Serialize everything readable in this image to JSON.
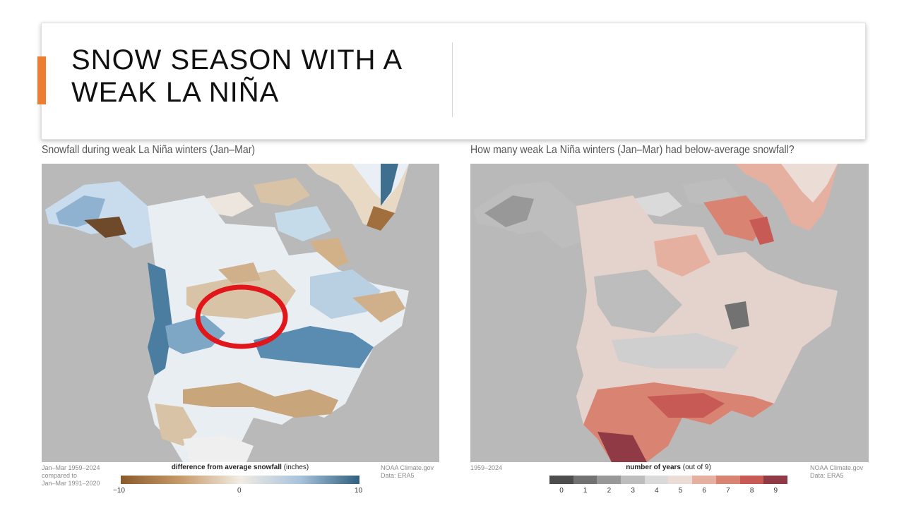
{
  "slide": {
    "title": "SNOW SEASON WITH A WEAK LA NIÑA",
    "accent_color": "#ED7D31"
  },
  "left_map": {
    "caption": "Snowfall during weak La Niña winters (Jan–Mar)",
    "period_note": [
      "Jan–Mar 1959–2024",
      "compared to",
      "Jan–Mar 1991–2020"
    ],
    "source": [
      "NOAA Climate.gov",
      "Data: ERA5"
    ],
    "legend_title": "difference from average snowfall",
    "legend_unit": "(inches)",
    "legend_ticks": [
      "−10",
      "0",
      "10"
    ],
    "legend_colors": [
      "#8a5a2b",
      "#f1ece4",
      "#2f5f7f"
    ],
    "highlight_color": "#e0161b"
  },
  "right_map": {
    "caption": "How many weak La Niña winters (Jan–Mar) had below-average snowfall?",
    "period_note": [
      "1959–2024"
    ],
    "source": [
      "NOAA Climate.gov",
      "Data: ERA5"
    ],
    "legend_title": "number of years",
    "legend_unit": "(out of 9)",
    "legend_ticks": [
      "0",
      "1",
      "2",
      "3",
      "4",
      "5",
      "6",
      "7",
      "8",
      "9"
    ],
    "legend_colors": [
      "#4d4d4d",
      "#727272",
      "#989898",
      "#bdbdbd",
      "#dadada",
      "#ecdcd6",
      "#e6b0a0",
      "#d98373",
      "#c85a55",
      "#8f3a44"
    ]
  }
}
